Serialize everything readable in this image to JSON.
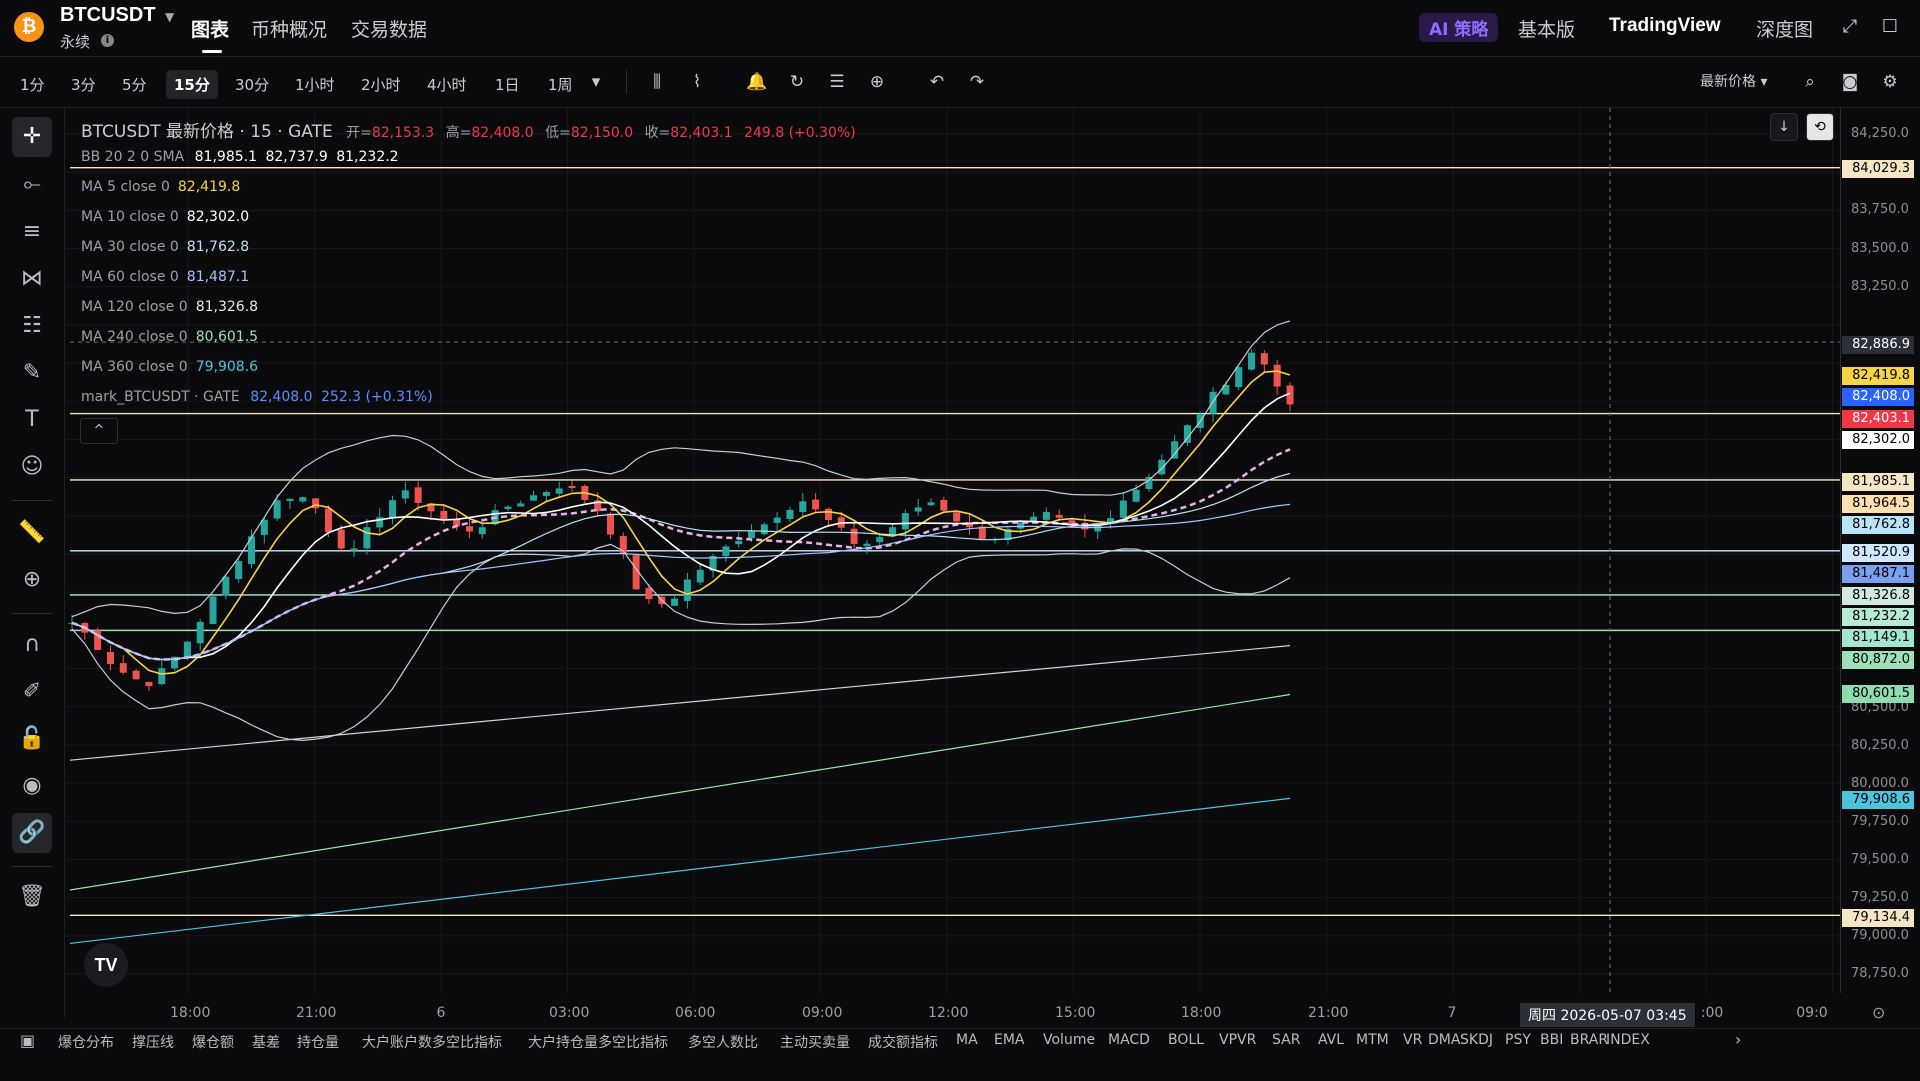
{
  "header": {
    "symbol": "BTCUSDT",
    "coin_glyph": "₿",
    "subtitle": "永续",
    "tabs": [
      "图表",
      "币种概况",
      "交易数据"
    ],
    "active_tab": "图表",
    "ai_badge": "AI 策略",
    "right_tabs": [
      "基本版",
      "TradingView",
      "深度图"
    ]
  },
  "toolbar": {
    "timeframes": [
      "1分",
      "3分",
      "5分",
      "15分",
      "30分",
      "1小时",
      "2小时",
      "4小时",
      "1日",
      "1周"
    ],
    "active_timeframe": "15分",
    "price_select": "最新价格"
  },
  "legend": {
    "title": "BTCUSDT 最新价格 · 15 · GATE",
    "open_label": "开=",
    "open": "82,153.3",
    "high_label": "高=",
    "high": "82,408.0",
    "low_label": "低=",
    "low": "82,150.0",
    "close_label": "收=",
    "close": "82,403.1",
    "change": "249.8 (+0.30%)",
    "bb_label": "BB 20 2 0 SMA",
    "bb_values": [
      "81,985.1",
      "82,737.9",
      "81,232.2"
    ],
    "ma": [
      {
        "label": "MA 5 close 0",
        "value": "82,419.8",
        "color": "#f5d547"
      },
      {
        "label": "MA 10 close 0",
        "value": "82,302.0",
        "color": "#ffffff"
      },
      {
        "label": "MA 30 close 0",
        "value": "81,762.8",
        "color": "#b9e3f7"
      },
      {
        "label": "MA 60 close 0",
        "value": "81,487.1",
        "color": "#a4c4ff"
      },
      {
        "label": "MA 120 close 0",
        "value": "81,326.8",
        "color": "#e8e8e8"
      },
      {
        "label": "MA 240 close 0",
        "value": "80,601.5",
        "color": "#9fe0b8"
      },
      {
        "label": "MA 360 close 0",
        "value": "79,908.6",
        "color": "#4fc3dc"
      }
    ],
    "mark_label": "mark_BTCUSDT · GATE",
    "mark_value": "82,408.0",
    "mark_change": "252.3 (+0.31%)"
  },
  "price_axis": {
    "ticks": [
      "84,250.0",
      "83,750.0",
      "83,500.0",
      "83,250.0",
      "80,500.0",
      "80,250.0",
      "80,000.0",
      "79,750.0",
      "79,500.0",
      "79,250.0",
      "79,000.0",
      "78,750.0"
    ],
    "tags": [
      {
        "text": "84,029.3",
        "bg": "#f5e7c6",
        "fg": "#000000"
      },
      {
        "text": "82,886.9",
        "bg": "#2c2f36",
        "fg": "#ffffff"
      },
      {
        "text": "82,419.8",
        "bg": "#f5d547",
        "fg": "#000000"
      },
      {
        "text": "82,408.0",
        "bg": "#2962ff",
        "fg": "#ffffff"
      },
      {
        "text": "82,403.1",
        "bg": "#f23645",
        "fg": "#ffffff"
      },
      {
        "text": "82,302.0",
        "bg": "#ffffff",
        "fg": "#000000"
      },
      {
        "text": "81,985.1",
        "bg": "#f5e7c6",
        "fg": "#000000"
      },
      {
        "text": "81,964.5",
        "bg": "#ffe0b2",
        "fg": "#000000"
      },
      {
        "text": "81,762.8",
        "bg": "#b9e3f7",
        "fg": "#000000"
      },
      {
        "text": "81,520.9",
        "bg": "#cfe8ff",
        "fg": "#000000"
      },
      {
        "text": "81,487.1",
        "bg": "#7aa0f0",
        "fg": "#000000"
      },
      {
        "text": "81,326.8",
        "bg": "#cfe8e0",
        "fg": "#000000"
      },
      {
        "text": "81,232.2",
        "bg": "#b7ead4",
        "fg": "#000000"
      },
      {
        "text": "81,149.1",
        "bg": "#a2e6cf",
        "fg": "#000000"
      },
      {
        "text": "80,872.0",
        "bg": "#9fe0b8",
        "fg": "#000000"
      },
      {
        "text": "80,601.5",
        "bg": "#8fdcb0",
        "fg": "#000000"
      },
      {
        "text": "79,908.6",
        "bg": "#4fc3dc",
        "fg": "#000000"
      },
      {
        "text": "79,134.4",
        "bg": "#f5e7c6",
        "fg": "#000000"
      }
    ]
  },
  "time_axis": {
    "labels": [
      "18:00",
      "21:00",
      "6",
      "03:00",
      "06:00",
      "09:00",
      "12:00",
      "15:00",
      "18:00",
      "21:00",
      "7",
      ":00",
      "09:0"
    ],
    "crosshair_label": "周四 2026-05-07   03:45"
  },
  "indicators": [
    "爆仓分布",
    "撑压线",
    "爆仓额",
    "基差",
    "持仓量",
    "大户账户数多空比指标",
    "大户持仓量多空比指标",
    "多空人数比",
    "主动买卖量",
    "成交额指标",
    "MA",
    "EMA",
    "Volume",
    "MACD",
    "BOLL",
    "VPVR",
    "SAR",
    "AVL",
    "MTM",
    "VR",
    "DMA",
    "SKDJ",
    "PSY",
    "BBI",
    "BRAR",
    "INDEX"
  ],
  "tv_logo": "TV",
  "icons": {
    "chevron_up": "^",
    "download": "↓"
  }
}
